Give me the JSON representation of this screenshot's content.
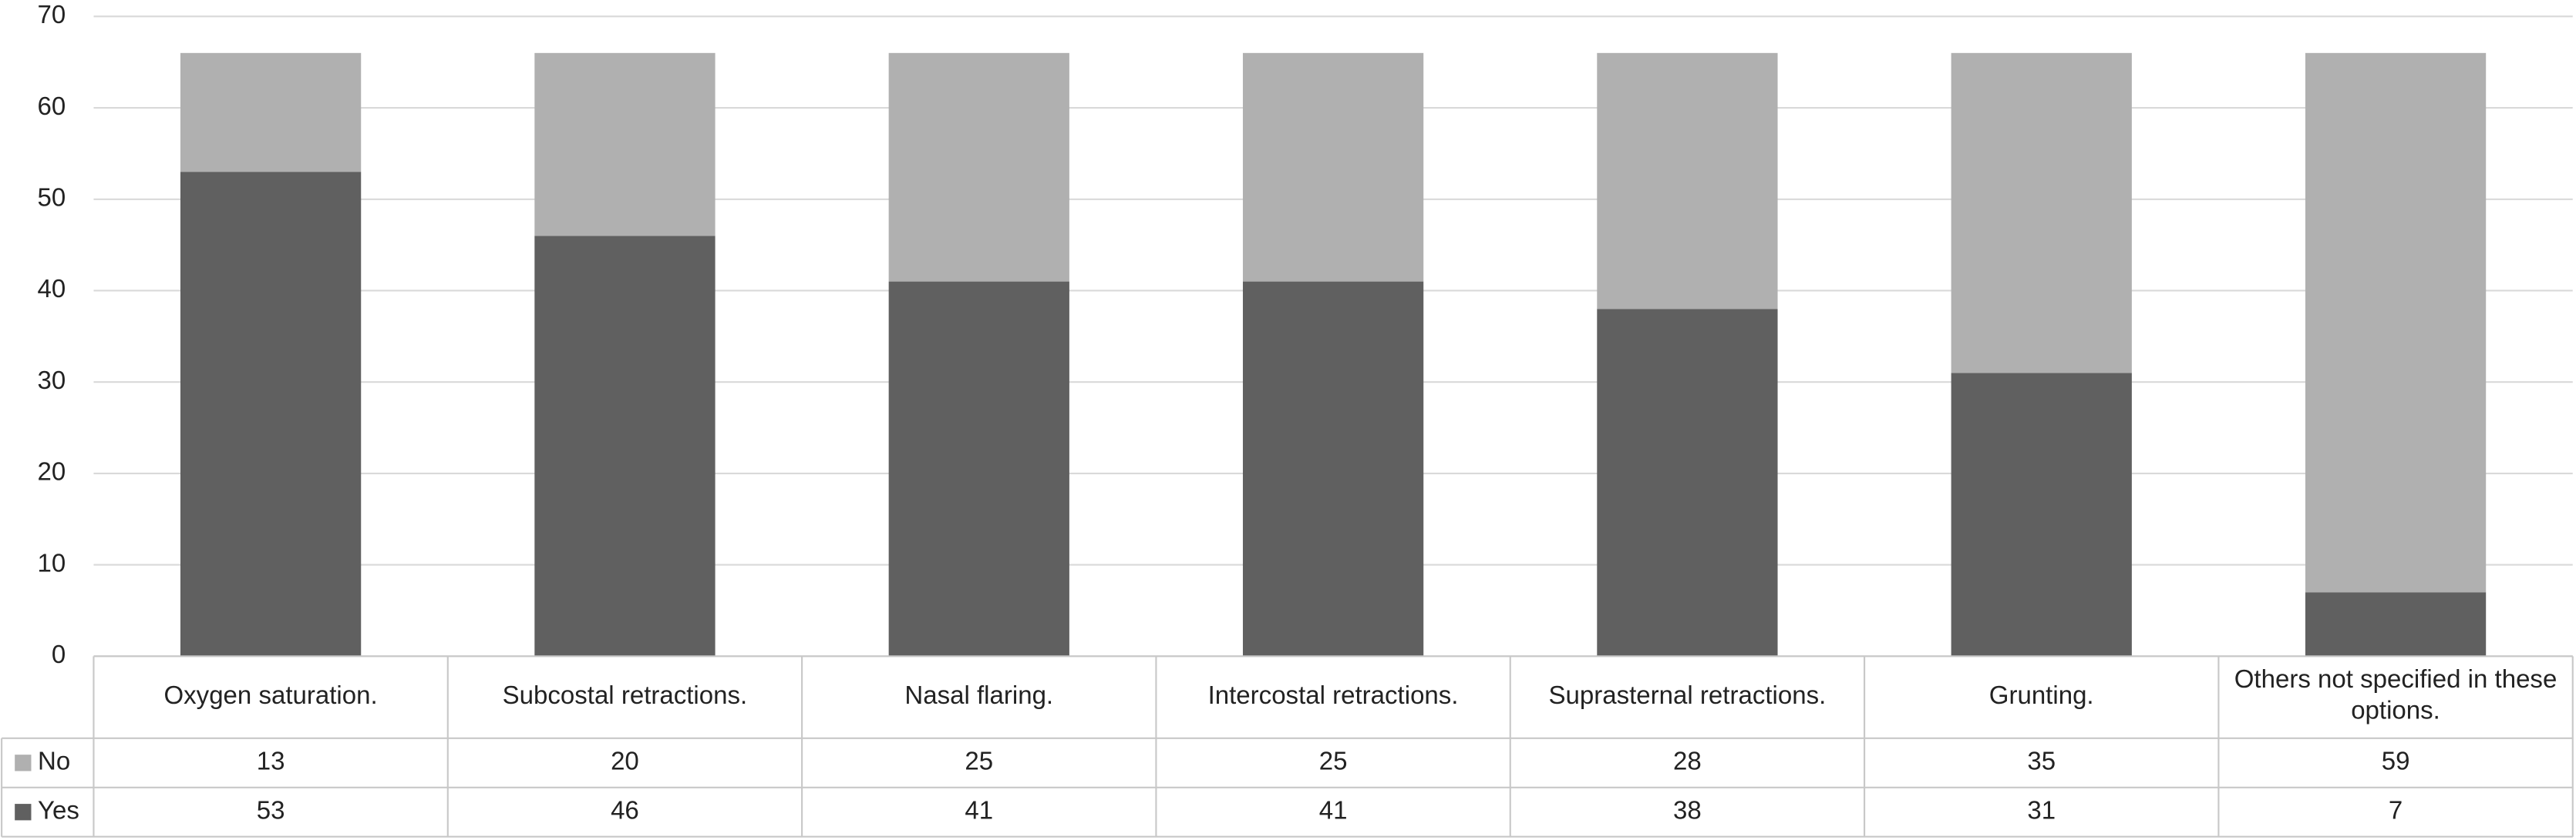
{
  "chart_data": {
    "type": "bar",
    "stacked": true,
    "categories": [
      "Oxygen saturation.",
      "Subcostal retractions.",
      "Nasal flaring.",
      "Intercostal retractions.",
      "Suprasternal retractions.",
      "Grunting.",
      "Others not specified in these options."
    ],
    "series": [
      {
        "name": "No",
        "color": "#b0b0b0",
        "values": [
          13,
          20,
          25,
          25,
          28,
          35,
          59
        ]
      },
      {
        "name": "Yes",
        "color": "#606060",
        "values": [
          53,
          46,
          41,
          41,
          38,
          31,
          7
        ]
      }
    ],
    "ylim": [
      0,
      70
    ],
    "yticks": [
      0,
      10,
      20,
      30,
      40,
      50,
      60,
      70
    ],
    "grid": true,
    "data_table": true
  }
}
